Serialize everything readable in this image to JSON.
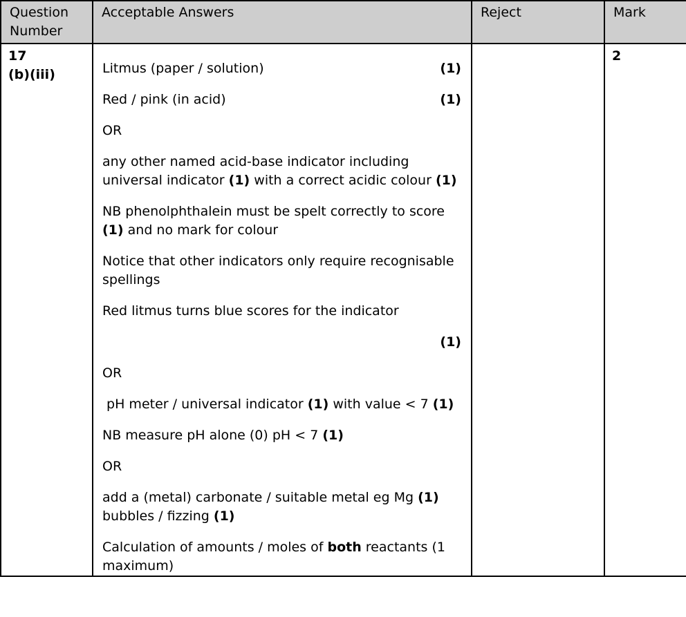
{
  "colors": {
    "header_bg": "#cecece",
    "border": "#000000",
    "body_bg": "#ffffff",
    "text": "#000000"
  },
  "table": {
    "columns": [
      {
        "label": "Question Number"
      },
      {
        "label": "Acceptable Answers"
      },
      {
        "label": "Reject"
      },
      {
        "label": "Mark"
      }
    ]
  },
  "row": {
    "question_number_line1": "17",
    "question_number_line2": "(b)(iii)",
    "reject": "",
    "mark": "2",
    "acceptable_answers": [
      {
        "type": "split",
        "segments": [
          {
            "text": "Litmus (paper / solution)"
          }
        ],
        "right_mark": "(1)"
      },
      {
        "type": "split",
        "segments": [
          {
            "text": "Red / pink (in acid)"
          }
        ],
        "right_mark": "(1)"
      },
      {
        "segments": [
          {
            "text": "OR"
          }
        ]
      },
      {
        "segments": [
          {
            "text": "any other named acid-base indicator including universal indicator "
          },
          {
            "text": "(1)",
            "bold": true
          },
          {
            "text": " with a correct acidic colour "
          },
          {
            "text": "(1)",
            "bold": true
          }
        ]
      },
      {
        "segments": [
          {
            "text": "NB phenolphthalein must be spelt correctly to score "
          },
          {
            "text": "(1)",
            "bold": true
          },
          {
            "text": " and no mark for colour"
          }
        ]
      },
      {
        "segments": [
          {
            "text": "Notice that other indicators only require recognisable spellings"
          }
        ]
      },
      {
        "segments": [
          {
            "text": "Red litmus turns blue scores for the indicator"
          }
        ]
      },
      {
        "type": "right",
        "segments": [
          {
            "text": "(1)",
            "bold": true
          }
        ]
      },
      {
        "segments": [
          {
            "text": "OR"
          }
        ]
      },
      {
        "segments": [
          {
            "text": " pH meter / universal indicator "
          },
          {
            "text": "(1)",
            "bold": true
          },
          {
            "text": " with value < 7 "
          },
          {
            "text": "(1)",
            "bold": true
          }
        ]
      },
      {
        "segments": [
          {
            "text": "NB measure pH alone (0) pH < 7 "
          },
          {
            "text": "(1)",
            "bold": true
          }
        ]
      },
      {
        "segments": [
          {
            "text": "OR"
          }
        ]
      },
      {
        "segments": [
          {
            "text": "add a (metal) carbonate / suitable metal eg Mg "
          },
          {
            "text": "(1)",
            "bold": true
          },
          {
            "text": " bubbles / fizzing "
          },
          {
            "text": "(1)",
            "bold": true
          }
        ]
      },
      {
        "segments": [
          {
            "text": "Calculation of amounts / moles of "
          },
          {
            "text": "both",
            "bold": true
          },
          {
            "text": " reactants (1 maximum)"
          }
        ]
      }
    ]
  }
}
